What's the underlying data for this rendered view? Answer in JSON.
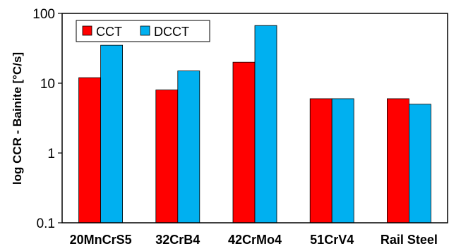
{
  "chart_data": {
    "type": "bar",
    "title": "",
    "xlabel": "",
    "ylabel": "log CCR - Bainite [°C/s]",
    "yscale": "log",
    "ylim": [
      0.1,
      100
    ],
    "yticks": [
      "0.1",
      "1",
      "10",
      "100"
    ],
    "grid": false,
    "legend_position": "top-left",
    "categories": [
      "20MnCrS5",
      "32CrB4",
      "42CrMo4",
      "51CrV4",
      "Rail Steel"
    ],
    "series": [
      {
        "name": "CCT",
        "color": "#ff0000",
        "values": [
          12,
          8,
          20,
          6,
          6
        ]
      },
      {
        "name": "DCCT",
        "color": "#00b0f0",
        "values": [
          35,
          15,
          67,
          6,
          5
        ]
      }
    ]
  }
}
